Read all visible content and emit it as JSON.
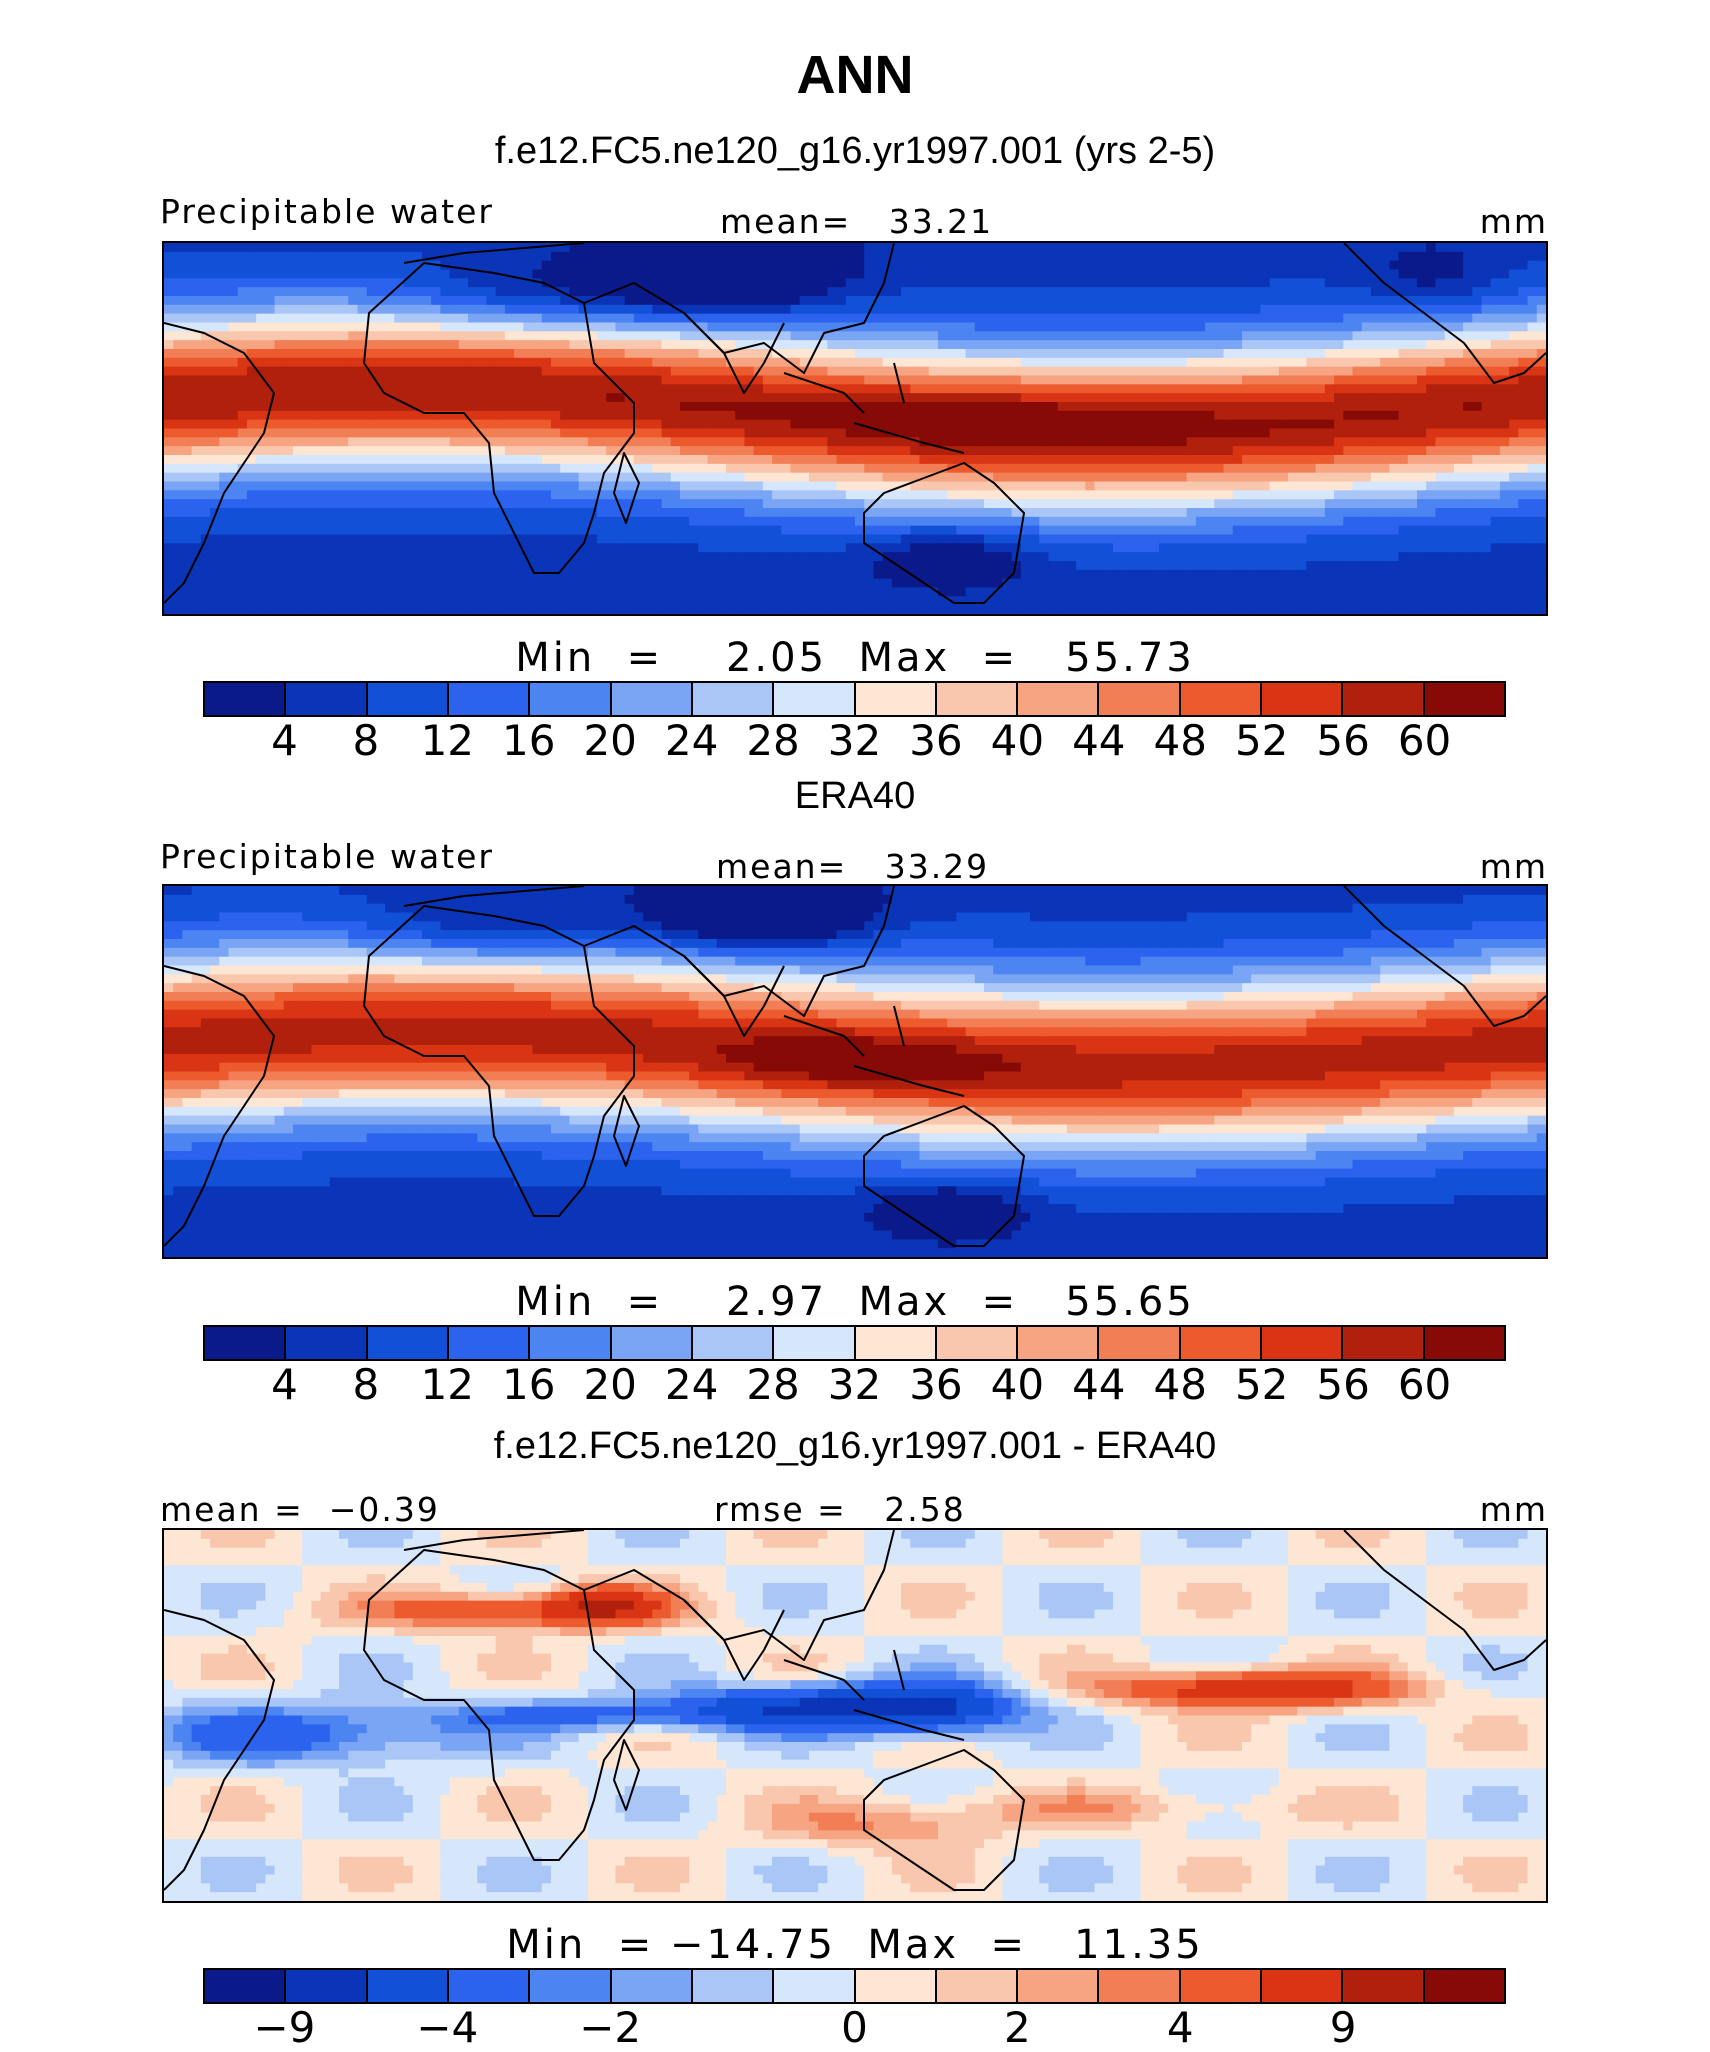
{
  "title": "ANN",
  "colors": {
    "seq": [
      "#0b1a8a",
      "#0a35b8",
      "#1350d8",
      "#2b63ef",
      "#4c84f2",
      "#7aa4f4",
      "#a9c6f7",
      "#d6e6fb",
      "#fde6d3",
      "#f9c7ad",
      "#f6a482",
      "#f27e56",
      "#ec5a2e",
      "#d93414",
      "#b0200d",
      "#870a06"
    ],
    "div": [
      "#0b1a8a",
      "#0a35b8",
      "#1350d8",
      "#2b63ef",
      "#4c84f2",
      "#7aa4f4",
      "#a9c6f7",
      "#d6e6fb",
      "#fde6d3",
      "#f9c7ad",
      "#f6a482",
      "#f27e56",
      "#ec5a2e",
      "#d93414",
      "#b0200d",
      "#870a06"
    ]
  },
  "panels": [
    {
      "subtitle": "f.e12.FC5.ne120_g16.yr1997.001 (yrs 2-5)",
      "left_label": "Precipitable water",
      "center_label": "mean=   33.21",
      "units": "mm",
      "stats": "Min  =    2.05  Max  =   55.73",
      "ticks": [
        "4",
        "8",
        "12",
        "16",
        "20",
        "24",
        "28",
        "32",
        "36",
        "40",
        "44",
        "48",
        "52",
        "56",
        "60"
      ],
      "field": "model"
    },
    {
      "subtitle": "ERA40",
      "left_label": "Precipitable water",
      "center_label": "mean=   33.29",
      "units": "mm",
      "stats": "Min  =    2.97  Max  =   55.65",
      "ticks": [
        "4",
        "8",
        "12",
        "16",
        "20",
        "24",
        "28",
        "32",
        "36",
        "40",
        "44",
        "48",
        "52",
        "56",
        "60"
      ],
      "field": "obs"
    },
    {
      "subtitle": "f.e12.FC5.ne120_g16.yr1997.001 - ERA40",
      "left_label": "mean =  −0.39",
      "center_label": "rmse =   2.58",
      "units": "mm",
      "stats": "Min  = −14.75  Max  =   11.35",
      "ticks": [
        "−9",
        "−4",
        "−2",
        "0",
        "2",
        "4",
        "9"
      ],
      "tick_slots": [
        1,
        3,
        5,
        8,
        10,
        12,
        14
      ],
      "field": "diff"
    }
  ]
}
